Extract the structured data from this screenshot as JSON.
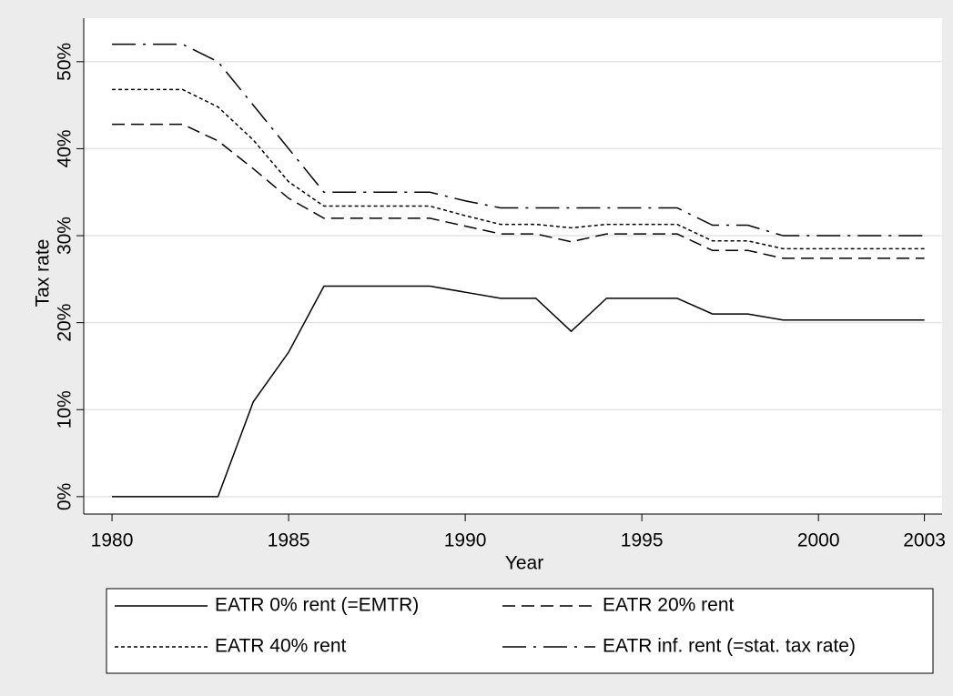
{
  "chart_data": {
    "type": "line",
    "y_label": "Tax rate",
    "x_label": "Year",
    "x": [
      1980,
      1981,
      1982,
      1983,
      1984,
      1985,
      1986,
      1987,
      1988,
      1989,
      1990,
      1991,
      1992,
      1993,
      1994,
      1995,
      1996,
      1997,
      1998,
      1999,
      2000,
      2001,
      2002,
      2003
    ],
    "series": [
      {
        "name": "EATR 0% rent (=EMTR)",
        "color": "#000000",
        "style": "solid",
        "values": [
          0,
          0,
          0,
          0,
          10.9,
          16.6,
          24.2,
          24.2,
          24.2,
          24.2,
          23.5,
          22.8,
          22.8,
          19,
          22.8,
          22.8,
          22.8,
          21,
          21,
          20.3,
          20.3,
          20.3,
          20.3,
          20.3
        ]
      },
      {
        "name": "EATR 20% rent",
        "color": "#000000",
        "style": "dashed",
        "values": [
          42.8,
          42.8,
          42.8,
          40.9,
          37.7,
          34.3,
          32,
          32,
          32,
          32,
          31.1,
          30.2,
          30.2,
          29.3,
          30.2,
          30.2,
          30.2,
          28.3,
          28.3,
          27.4,
          27.4,
          27.4,
          27.4,
          27.4
        ]
      },
      {
        "name": "EATR 40% rent",
        "color": "#000000",
        "style": "dotted",
        "values": [
          46.8,
          46.8,
          46.8,
          44.8,
          41,
          36.2,
          33.4,
          33.4,
          33.4,
          33.4,
          32.3,
          31.3,
          31.3,
          30.9,
          31.3,
          31.3,
          31.3,
          29.4,
          29.4,
          28.5,
          28.5,
          28.5,
          28.5,
          28.5
        ]
      },
      {
        "name": "EATR inf. rent (=stat. tax rate)",
        "color": "#000000",
        "style": "dashdot",
        "values": [
          52,
          52,
          52,
          50,
          45,
          40,
          35,
          35,
          35,
          35,
          34,
          33.2,
          33.2,
          33.2,
          33.2,
          33.2,
          33.2,
          31.2,
          31.2,
          30,
          30,
          30,
          30,
          30
        ]
      }
    ],
    "xlim": [
      1979.2,
      2003.5
    ],
    "xticks": [
      1980,
      1985,
      1990,
      1995,
      2000,
      2003
    ],
    "ylim": [
      -2,
      55
    ],
    "yticks": [
      {
        "value": 0,
        "label": "0%"
      },
      {
        "value": 10,
        "label": "10%"
      },
      {
        "value": 20,
        "label": "20%"
      },
      {
        "value": 30,
        "label": "30%"
      },
      {
        "value": 40,
        "label": "40%"
      },
      {
        "value": 50,
        "label": "50%"
      }
    ],
    "grid": true,
    "legend": "bottom"
  }
}
